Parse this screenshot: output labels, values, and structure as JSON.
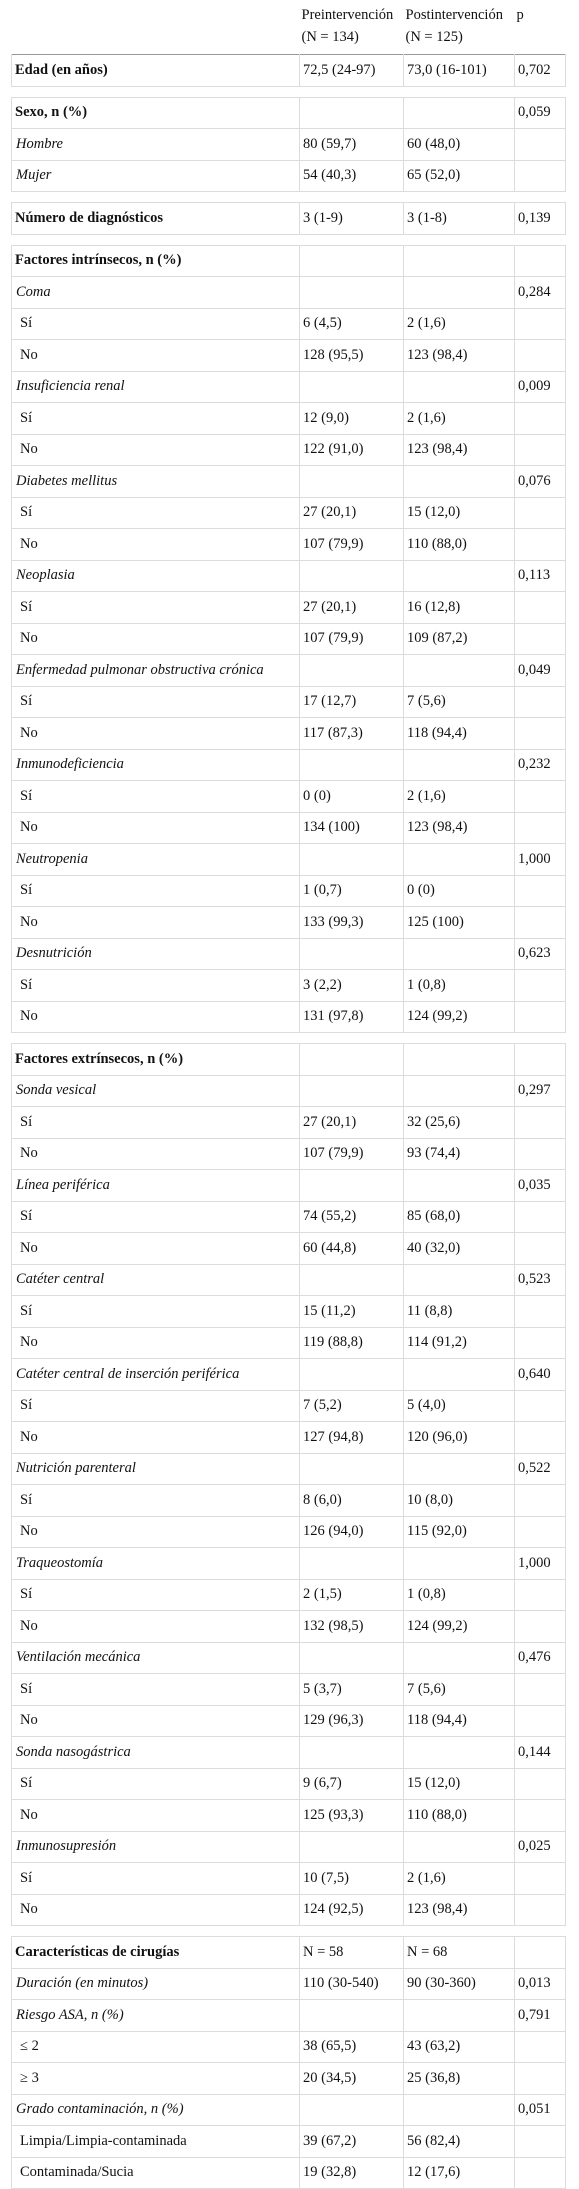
{
  "table": {
    "header": [
      [
        "Preintervención",
        "(N = 134)"
      ],
      [
        "Postintervención",
        "(N = 125)"
      ],
      [
        "p"
      ]
    ],
    "sections": [
      {
        "label": "Edad (en años)",
        "pre": "72,5 (24-97)",
        "post": "73,0 (16-101)",
        "p": "0,702"
      },
      {
        "label": "Sexo, n (%)",
        "p": "0,059",
        "items": [
          {
            "label": "Hombre",
            "pre": "80 (59,7)",
            "post": "60 (48,0)"
          },
          {
            "label": "Mujer",
            "pre": "54 (40,3)",
            "post": "65 (52,0)"
          }
        ]
      },
      {
        "label": "Número de diagnósticos",
        "pre": "3 (1-9)",
        "post": "3 (1-8)",
        "p": "0,139"
      },
      {
        "label": "Factores intrínsecos, n (%)",
        "items": [
          {
            "label": "Coma",
            "p": "0,284",
            "options": [
              {
                "label": "Sí",
                "pre": "6 (4,5)",
                "post": "2 (1,6)"
              },
              {
                "label": "No",
                "pre": "128 (95,5)",
                "post": "123 (98,4)"
              }
            ]
          },
          {
            "label": "Insuficiencia renal",
            "p": "0,009",
            "options": [
              {
                "label": "Sí",
                "pre": "12 (9,0)",
                "post": "2 (1,6)"
              },
              {
                "label": "No",
                "pre": "122 (91,0)",
                "post": "123 (98,4)"
              }
            ]
          },
          {
            "label": "Diabetes mellitus",
            "p": "0,076",
            "options": [
              {
                "label": "Sí",
                "pre": "27 (20,1)",
                "post": "15 (12,0)"
              },
              {
                "label": "No",
                "pre": "107 (79,9)",
                "post": "110 (88,0)"
              }
            ]
          },
          {
            "label": "Neoplasia",
            "p": "0,113",
            "options": [
              {
                "label": "Sí",
                "pre": "27 (20,1)",
                "post": "16 (12,8)"
              },
              {
                "label": "No",
                "pre": "107 (79,9)",
                "post": "109 (87,2)"
              }
            ]
          },
          {
            "label": "Enfermedad pulmonar obstructiva crónica",
            "p": "0,049",
            "options": [
              {
                "label": "Sí",
                "pre": "17 (12,7)",
                "post": "7 (5,6)"
              },
              {
                "label": "No",
                "pre": "117 (87,3)",
                "post": "118 (94,4)"
              }
            ]
          },
          {
            "label": "Inmunodeficiencia",
            "p": "0,232",
            "options": [
              {
                "label": "Sí",
                "pre": "0 (0)",
                "post": "2 (1,6)"
              },
              {
                "label": "No",
                "pre": "134 (100)",
                "post": "123 (98,4)"
              }
            ]
          },
          {
            "label": "Neutropenia",
            "p": "1,000",
            "options": [
              {
                "label": "Sí",
                "pre": "1 (0,7)",
                "post": "0 (0)"
              },
              {
                "label": "No",
                "pre": "133 (99,3)",
                "post": "125 (100)"
              }
            ]
          },
          {
            "label": "Desnutrición",
            "p": "0,623",
            "options": [
              {
                "label": "Sí",
                "pre": "3 (2,2)",
                "post": "1 (0,8)"
              },
              {
                "label": "No",
                "pre": "131 (97,8)",
                "post": "124 (99,2)"
              }
            ]
          }
        ]
      },
      {
        "label": "Factores extrínsecos, n (%)",
        "items": [
          {
            "label": "Sonda vesical",
            "p": "0,297",
            "options": [
              {
                "label": "Sí",
                "pre": "27 (20,1)",
                "post": "32 (25,6)"
              },
              {
                "label": "No",
                "pre": "107 (79,9)",
                "post": "93 (74,4)"
              }
            ]
          },
          {
            "label": "Línea periférica",
            "p": "0,035",
            "options": [
              {
                "label": "Sí",
                "pre": "74 (55,2)",
                "post": "85 (68,0)"
              },
              {
                "label": "No",
                "pre": "60 (44,8)",
                "post": "40 (32,0)"
              }
            ]
          },
          {
            "label": "Catéter central",
            "p": "0,523",
            "options": [
              {
                "label": "Sí",
                "pre": "15 (11,2)",
                "post": "11 (8,8)"
              },
              {
                "label": "No",
                "pre": "119 (88,8)",
                "post": "114 (91,2)"
              }
            ]
          },
          {
            "label": "Catéter central de inserción periférica",
            "p": "0,640",
            "options": [
              {
                "label": "Sí",
                "pre": "7 (5,2)",
                "post": "5 (4,0)"
              },
              {
                "label": "No",
                "pre": "127 (94,8)",
                "post": "120 (96,0)"
              }
            ]
          },
          {
            "label": "Nutrición parenteral",
            "p": "0,522",
            "options": [
              {
                "label": "Sí",
                "pre": "8 (6,0)",
                "post": "10 (8,0)"
              },
              {
                "label": "No",
                "pre": "126 (94,0)",
                "post": "115 (92,0)"
              }
            ]
          },
          {
            "label": "Traqueostomía",
            "p": "1,000",
            "options": [
              {
                "label": "Sí",
                "pre": "2 (1,5)",
                "post": "1 (0,8)"
              },
              {
                "label": "No",
                "pre": "132 (98,5)",
                "post": "124 (99,2)"
              }
            ]
          },
          {
            "label": "Ventilación mecánica",
            "p": "0,476",
            "options": [
              {
                "label": "Sí",
                "pre": "5 (3,7)",
                "post": "7 (5,6)"
              },
              {
                "label": "No",
                "pre": "129 (96,3)",
                "post": "118 (94,4)"
              }
            ]
          },
          {
            "label": "Sonda nasogástrica",
            "p": "0,144",
            "options": [
              {
                "label": "Sí",
                "pre": "9 (6,7)",
                "post": "15 (12,0)"
              },
              {
                "label": "No",
                "pre": "125 (93,3)",
                "post": "110 (88,0)"
              }
            ]
          },
          {
            "label": "Inmunosupresión",
            "p": "0,025",
            "options": [
              {
                "label": "Sí",
                "pre": "10 (7,5)",
                "post": "2 (1,6)"
              },
              {
                "label": "No",
                "pre": "124 (92,5)",
                "post": "123 (98,4)"
              }
            ]
          }
        ]
      },
      {
        "label": "Características de cirugías",
        "pre": "N = 58",
        "post": "N = 68",
        "items": [
          {
            "label": "Duración (en minutos)",
            "pre": "110 (30-540)",
            "post": "90 (30-360)",
            "p": "0,013"
          },
          {
            "label": "Riesgo ASA, n (%)",
            "p": "0,791",
            "options": [
              {
                "label": "≤ 2",
                "pre": "38 (65,5)",
                "post": "43 (63,2)"
              },
              {
                "label": "≥ 3",
                "pre": "20 (34,5)",
                "post": "25 (36,8)"
              }
            ]
          },
          {
            "label": "Grado contaminación, n (%)",
            "p": "0,051",
            "options": [
              {
                "label": "Limpia/Limpia-contaminada",
                "pre": "39 (67,2)",
                "post": "56 (82,4)"
              },
              {
                "label": "Contaminada/Sucia",
                "pre": "19 (32,8)",
                "post": "12 (17,6)"
              }
            ]
          }
        ]
      }
    ]
  }
}
